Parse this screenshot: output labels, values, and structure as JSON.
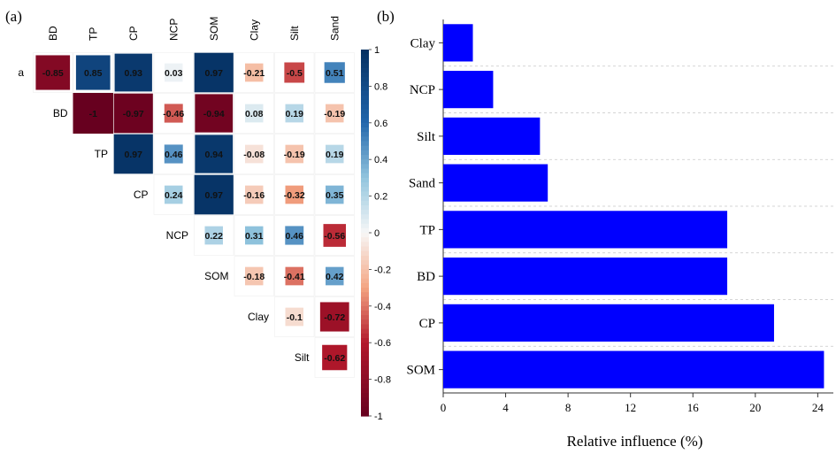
{
  "panel_a_label": "(a)",
  "panel_b_label": "(b)",
  "chart_data": [
    {
      "type": "heatmap",
      "columns": [
        "BD",
        "TP",
        "CP",
        "NCP",
        "SOM",
        "Clay",
        "Silt",
        "Sand"
      ],
      "rows": [
        "a",
        "BD",
        "TP",
        "CP",
        "NCP",
        "SOM",
        "Clay",
        "Silt"
      ],
      "values": [
        [
          -0.85,
          0.85,
          0.93,
          0.03,
          0.97,
          -0.21,
          -0.5,
          0.51
        ],
        [
          null,
          -1,
          -0.97,
          -0.46,
          -0.94,
          0.08,
          0.19,
          -0.19
        ],
        [
          null,
          null,
          0.97,
          0.46,
          0.94,
          -0.08,
          -0.19,
          0.19
        ],
        [
          null,
          null,
          null,
          0.24,
          0.97,
          -0.16,
          -0.32,
          0.35
        ],
        [
          null,
          null,
          null,
          null,
          0.22,
          0.31,
          0.46,
          -0.56
        ],
        [
          null,
          null,
          null,
          null,
          null,
          -0.18,
          -0.41,
          0.42
        ],
        [
          null,
          null,
          null,
          null,
          null,
          null,
          -0.1,
          -0.72
        ],
        [
          null,
          null,
          null,
          null,
          null,
          null,
          null,
          -0.62
        ]
      ],
      "colorbar_ticks": [
        "1",
        "0.8",
        "0.6",
        "0.4",
        "0.2",
        "0",
        "-0.2",
        "-0.4",
        "-0.6",
        "-0.8",
        "-1"
      ],
      "colorbar_range": [
        -1,
        1
      ],
      "colors": {
        "positive": "#053061",
        "neutral": "#f7f7f7",
        "negative": "#67001f"
      }
    },
    {
      "type": "bar",
      "orientation": "horizontal",
      "categories": [
        "Clay",
        "NCP",
        "Silt",
        "Sand",
        "TP",
        "BD",
        "CP",
        "SOM"
      ],
      "values": [
        1.9,
        3.2,
        6.2,
        6.7,
        18.2,
        18.2,
        21.2,
        24.4
      ],
      "xlabel": "Relative influence (%)",
      "xlim": [
        0,
        25
      ],
      "xticks": [
        "0",
        "4",
        "8",
        "12",
        "16",
        "20",
        "24"
      ],
      "grid": "horizontal dashed",
      "bar_color": "#0000ff"
    }
  ]
}
